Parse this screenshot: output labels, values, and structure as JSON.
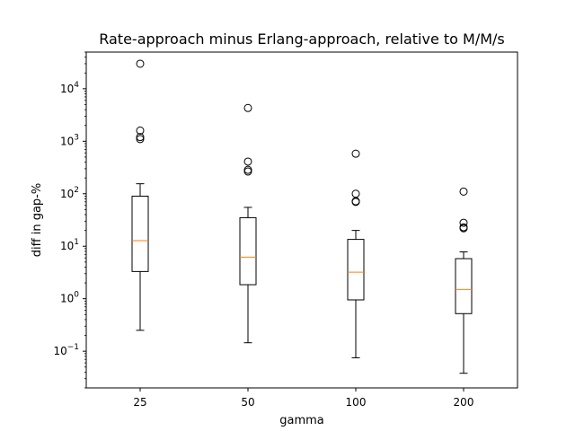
{
  "chart_data": {
    "type": "boxplot",
    "title": "Rate-approach minus Erlang-approach, relative to M/M/s",
    "xlabel": "gamma",
    "ylabel": "diff in gap-%",
    "yscale": "log",
    "ylim": [
      0.02,
      50000
    ],
    "grid": false,
    "categories": [
      "25",
      "50",
      "100",
      "200"
    ],
    "y_ticks": [
      {
        "value": 0.1,
        "base": "10",
        "exp": "−1"
      },
      {
        "value": 1,
        "base": "10",
        "exp": "0"
      },
      {
        "value": 10,
        "base": "10",
        "exp": "1"
      },
      {
        "value": 100,
        "base": "10",
        "exp": "2"
      },
      {
        "value": 1000,
        "base": "10",
        "exp": "3"
      },
      {
        "value": 10000,
        "base": "10",
        "exp": "4"
      }
    ],
    "boxes": [
      {
        "category": "25",
        "whisker_low": 0.25,
        "q1": 3.3,
        "median": 12.8,
        "q3": 90,
        "whisker_high": 155,
        "outliers": [
          1100,
          1200,
          1600,
          30000
        ]
      },
      {
        "category": "50",
        "whisker_low": 0.145,
        "q1": 1.85,
        "median": 6.2,
        "q3": 35,
        "whisker_high": 55,
        "outliers": [
          265,
          285,
          410,
          4300
        ]
      },
      {
        "category": "100",
        "whisker_low": 0.075,
        "q1": 0.95,
        "median": 3.2,
        "q3": 13.5,
        "whisker_high": 20,
        "outliers": [
          70,
          72,
          100,
          580
        ]
      },
      {
        "category": "200",
        "whisker_low": 0.038,
        "q1": 0.52,
        "median": 1.5,
        "q3": 5.8,
        "whisker_high": 7.8,
        "outliers": [
          22,
          23,
          28,
          110
        ]
      }
    ],
    "colors": {
      "box": "#000000",
      "median": "#ff7f0e",
      "outlier_edge": "#000000",
      "background": "#ffffff"
    }
  }
}
